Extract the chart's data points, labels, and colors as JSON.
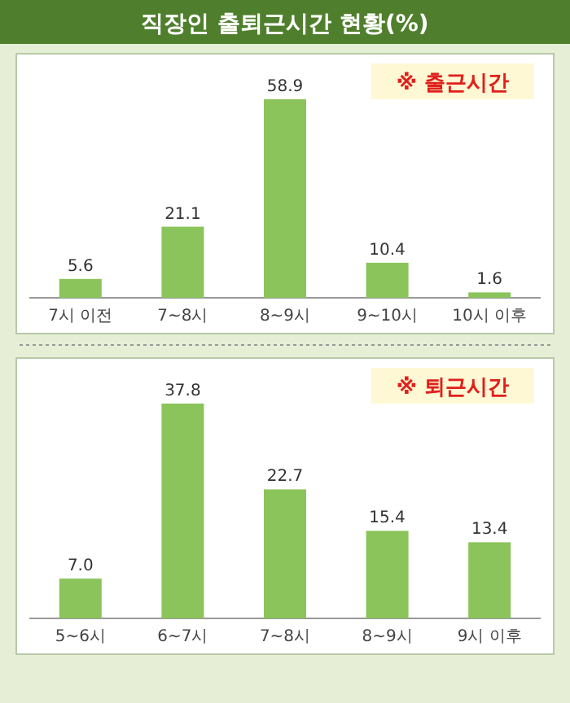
{
  "chart_data": [
    {
      "type": "bar",
      "title": "직장인 출퇴근시간 현황(%)",
      "subtitle": "※ 출근시간",
      "categories": [
        "7시 이전",
        "7~8시",
        "8~9시",
        "9~10시",
        "10시 이후"
      ],
      "values": [
        5.6,
        21.1,
        58.9,
        10.4,
        1.6
      ],
      "value_labels": [
        "5.6",
        "21.1",
        "58.9",
        "10.4",
        "1.6"
      ],
      "color": "#8bc45a"
    },
    {
      "type": "bar",
      "title": "※ 퇴근시간",
      "categories": [
        "5~6시",
        "6~7시",
        "7~8시",
        "8~9시",
        "9시 이후"
      ],
      "values": [
        7.0,
        37.8,
        22.7,
        15.4,
        13.4
      ],
      "value_labels": [
        "7.0",
        "37.8",
        "22.7",
        "15.4",
        "13.4"
      ],
      "color": "#8bc45a"
    }
  ]
}
